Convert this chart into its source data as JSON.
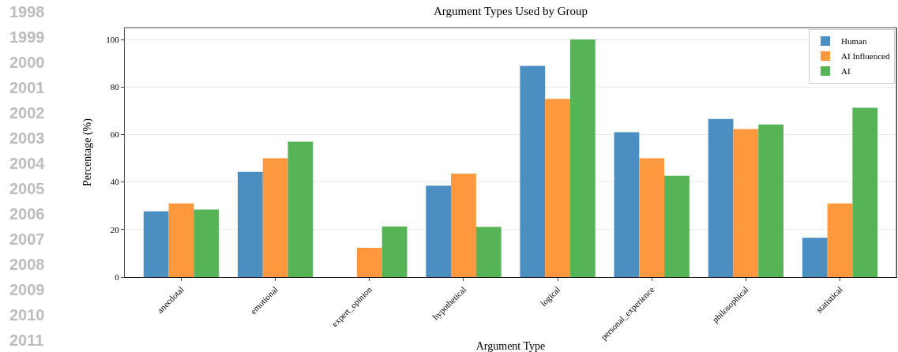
{
  "chart_data": {
    "type": "bar",
    "title": "Argument Types Used by Group",
    "xlabel": "Argument Type",
    "ylabel": "Percentage (%)",
    "categories": [
      "anecdotal",
      "emotional",
      "expert_opinion",
      "hypothetical",
      "logical",
      "personal_experience",
      "philosophical",
      "statistical"
    ],
    "series": [
      {
        "name": "Human",
        "color": "#4b8fc2",
        "values": [
          27.7,
          44.3,
          0,
          38.5,
          88.9,
          61,
          66.5,
          16.5
        ]
      },
      {
        "name": "AI Influenced",
        "color": "#fe983e",
        "values": [
          31,
          50,
          12.3,
          43.5,
          75,
          50,
          62.3,
          31
        ]
      },
      {
        "name": "AI",
        "color": "#56b356",
        "values": [
          28.4,
          57,
          21.3,
          21.1,
          100,
          42.6,
          64.2,
          71.3
        ]
      }
    ],
    "ylim": [
      0,
      105
    ],
    "yticks": [
      0,
      20,
      40,
      60,
      80,
      100
    ],
    "grid": "y",
    "legend": "top right",
    "annotations": [
      "1998",
      "1999",
      "2000",
      "2001",
      "2002",
      "2003",
      "2004",
      "2005",
      "2006",
      "2007",
      "2008",
      "2009",
      "2010",
      "2011"
    ]
  }
}
